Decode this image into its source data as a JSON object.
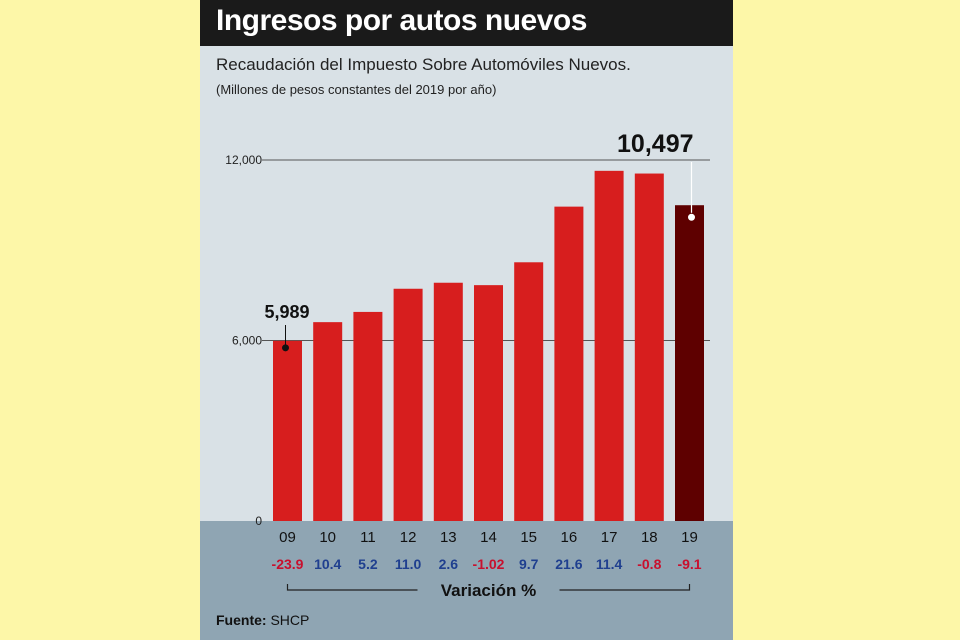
{
  "title": "Ingresos por autos nuevos",
  "subtitle": "Recaudación del Impuesto Sobre Automóviles Nuevos.",
  "note": "(Millones de pesos constantes del 2019 por año)",
  "source_label": "Fuente:",
  "source_value": "SHCP",
  "colors": {
    "background": "#fdf7a8",
    "card": "#d9e1e6",
    "bar": "#d71e1e",
    "last_bar": "#5e0000",
    "negative": "#c8102e",
    "positive": "#1f3f8f",
    "band": "#8fa5b3"
  },
  "chart_data": {
    "type": "bar",
    "title": "Ingresos por autos nuevos",
    "subtitle": "Recaudación del Impuesto Sobre Automóviles Nuevos.",
    "ylabel": "",
    "categories": [
      "09",
      "10",
      "11",
      "12",
      "13",
      "14",
      "15",
      "16",
      "17",
      "18",
      "19"
    ],
    "values": [
      5989,
      6610,
      6950,
      7720,
      7920,
      7840,
      8600,
      10450,
      11640,
      11550,
      10497
    ],
    "yticks": [
      {
        "value": 0,
        "label": "0"
      },
      {
        "value": 6000,
        "label": "6,000"
      },
      {
        "value": 12000,
        "label": "12,000"
      }
    ],
    "ylim": [
      0,
      12000
    ],
    "grid": "major ticks",
    "annotations": [
      {
        "index": 0,
        "label": "5,989"
      },
      {
        "index": 10,
        "label": "10,497"
      }
    ],
    "variation_label": "Variación %",
    "variation": [
      "-23.9",
      "10.4",
      "5.2",
      "11.0",
      "2.6",
      "-1.02",
      "9.7",
      "21.6",
      "11.4",
      "-0.8",
      "-9.1"
    ]
  }
}
